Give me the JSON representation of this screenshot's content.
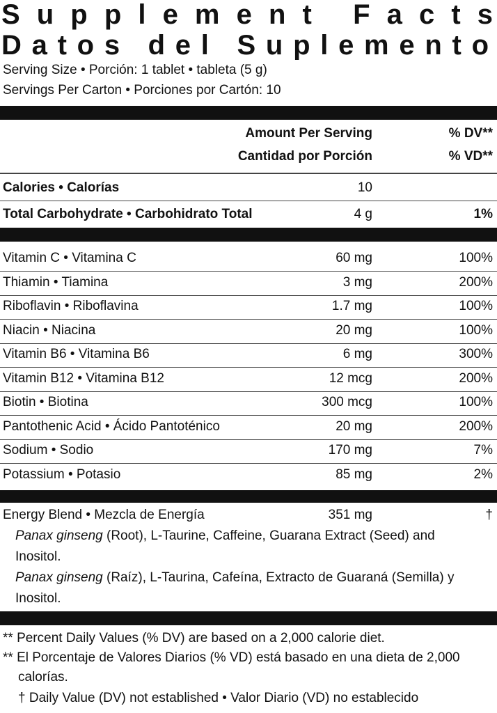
{
  "title": [
    "Supplement Facts",
    "Datos del Suplemento"
  ],
  "serving": [
    "Serving Size • Porción: 1 tablet • tableta (5 g)",
    "Servings Per Carton • Porciones por Cartón: 10"
  ],
  "header": {
    "amount": [
      "Amount Per Serving",
      "Cantidad por Porción"
    ],
    "dv": [
      "% DV**",
      "% VD**"
    ]
  },
  "macros": [
    {
      "name": "Calories • Calorías",
      "amount": "10",
      "dv": null
    },
    {
      "name": "Total Carbohydrate • Carbohidrato Total",
      "amount": "4 g",
      "dv": "1%"
    }
  ],
  "nutrients": [
    {
      "name": "Vitamin C • Vitamina C",
      "amount": "60 mg",
      "dv": "100%"
    },
    {
      "name": "Thiamin • Tiamina",
      "amount": "3 mg",
      "dv": "200%"
    },
    {
      "name": "Riboflavin • Riboflavina",
      "amount": "1.7 mg",
      "dv": "100%"
    },
    {
      "name": "Niacin • Niacina",
      "amount": "20 mg",
      "dv": "100%"
    },
    {
      "name": "Vitamin B6 • Vitamina B6",
      "amount": "6 mg",
      "dv": "300%"
    },
    {
      "name": "Vitamin B12 • Vitamina B12",
      "amount": "12 mcg",
      "dv": "200%"
    },
    {
      "name": "Biotin • Biotina",
      "amount": "300 mcg",
      "dv": "100%"
    },
    {
      "name": "Pantothenic Acid • Ácido Pantoténico",
      "amount": "20 mg",
      "dv": "200%"
    },
    {
      "name": "Sodium • Sodio",
      "amount": "170 mg",
      "dv": "7%"
    },
    {
      "name": "Potassium • Potasio",
      "amount": "85 mg",
      "dv": "2%"
    }
  ],
  "blend": {
    "name": "Energy Blend • Mezcla de Energía",
    "amount": "351 mg",
    "dv": "†",
    "ingredients": [
      {
        "italic": "Panax ginseng",
        "rest": "(Root), L-Taurine, Caffeine, Guarana Extract (Seed) and Inositol."
      },
      {
        "italic": "Panax ginseng",
        "rest": "(Raíz), L-Taurina, Cafeína, Extracto de Guaraná (Semilla) y Inositol."
      }
    ]
  },
  "footnotes": [
    "** Percent Daily Values (% DV) are based on a 2,000 calorie diet.",
    "** El Porcentaje de Valores Diarios (% VD) está basado en una dieta de 2,000 calorías.",
    "† Daily Value (DV) not established • Valor Diario (VD) no establecido"
  ]
}
